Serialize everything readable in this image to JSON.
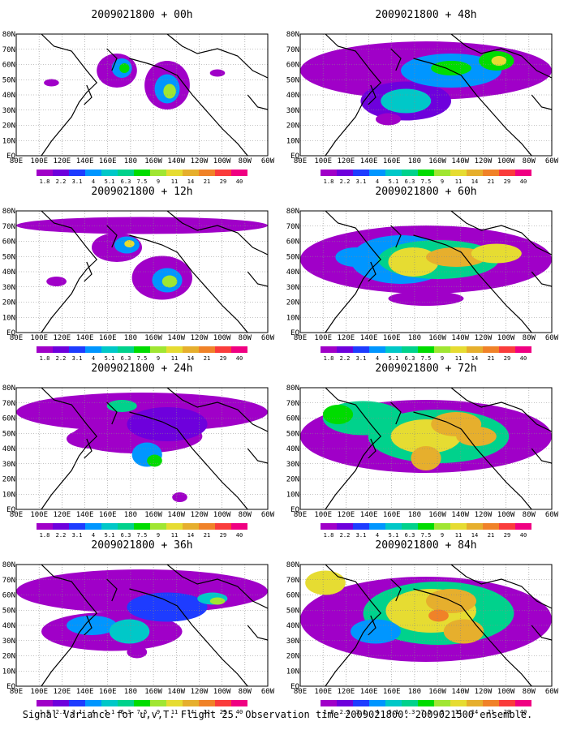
{
  "caption": "Signal Variance for u,v,T. Flight 25. Observation time 2009021800. 2009021500 ensemble.",
  "chart_data": [
    {
      "type": "heatmap",
      "title": "2009021800 + 00h",
      "panel": "00h"
    },
    {
      "type": "heatmap",
      "title": "2009021800 + 12h",
      "panel": "12h"
    },
    {
      "type": "heatmap",
      "title": "2009021800 + 24h",
      "panel": "24h"
    },
    {
      "type": "heatmap",
      "title": "2009021800 + 36h",
      "panel": "36h"
    },
    {
      "type": "heatmap",
      "title": "2009021800 + 48h",
      "panel": "48h"
    },
    {
      "type": "heatmap",
      "title": "2009021800 + 60h",
      "panel": "60h"
    },
    {
      "type": "heatmap",
      "title": "2009021800 + 72h",
      "panel": "72h"
    },
    {
      "type": "heatmap",
      "title": "2009021800 + 84h",
      "panel": "84h"
    }
  ],
  "x_ticks": [
    "80E",
    "100E",
    "120E",
    "140E",
    "160E",
    "180",
    "160W",
    "140W",
    "120W",
    "100W",
    "80W",
    "60W"
  ],
  "y_ticks": [
    "EQ",
    "10N",
    "20N",
    "30N",
    "40N",
    "50N",
    "60N",
    "70N",
    "80N"
  ],
  "colorbar": {
    "levels": [
      "1.8",
      "2.2",
      "3.1",
      "4",
      "5.1",
      "6.3",
      "7.5",
      "9",
      "11",
      "14",
      "21",
      "29",
      "40"
    ],
    "colors": [
      "#a000c8",
      "#6e00dc",
      "#1e3cff",
      "#0096ff",
      "#00c8c8",
      "#00d28c",
      "#00dc00",
      "#a0e632",
      "#e6dc32",
      "#e6af2d",
      "#f08228",
      "#fa3c3c",
      "#f00082"
    ]
  }
}
